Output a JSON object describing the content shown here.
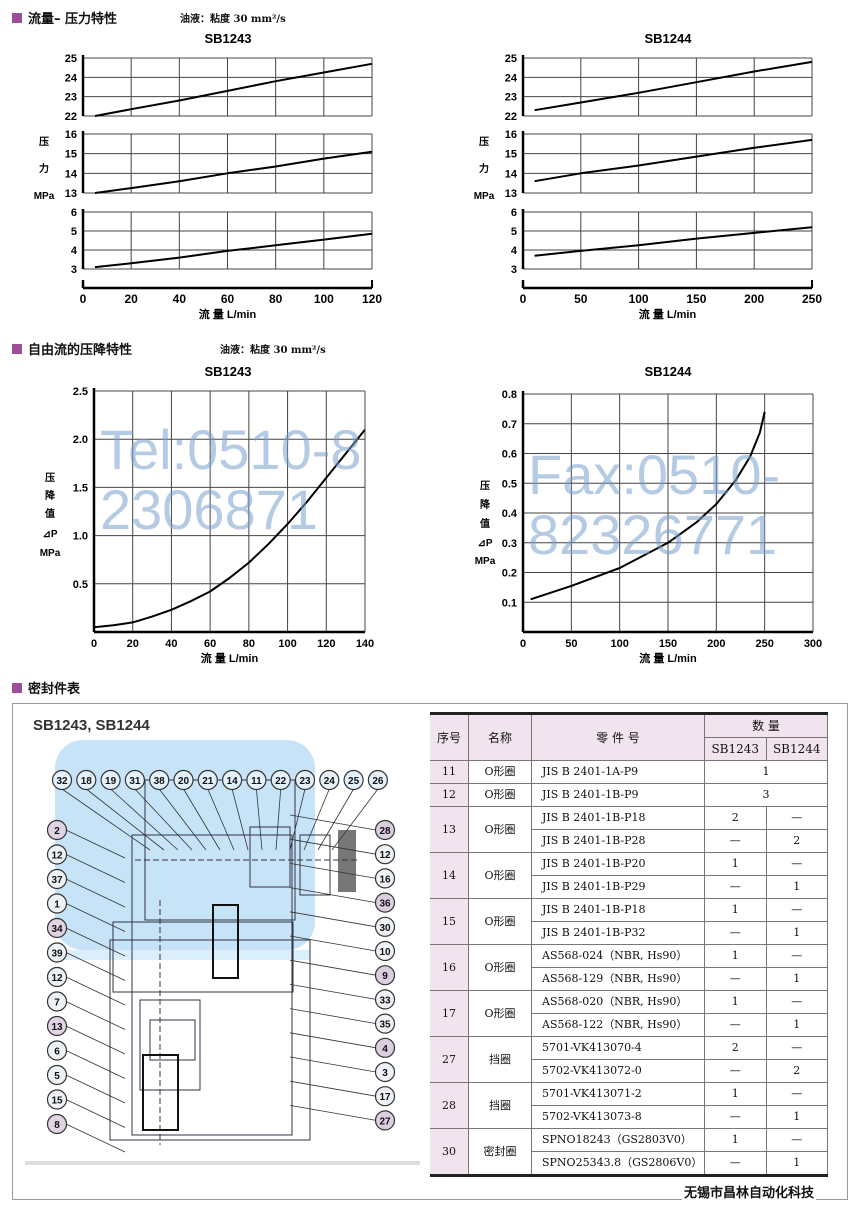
{
  "sections": {
    "flow_pressure": {
      "title": "流量– 压力特性",
      "oil_note": "油液：粘度 30 mm²/s"
    },
    "free_flow": {
      "title": "自由流的压降特性",
      "oil_note": "油液：粘度 30 mm²/s"
    },
    "seal_table": {
      "title": "密封件表"
    }
  },
  "watermarks": {
    "tel": "Tel:0510-82306871",
    "fax": "Fax:0510-82326771"
  },
  "chart_data": [
    {
      "type": "line",
      "title": "SB1243",
      "xlabel": "流 量 L/min",
      "ylabel_lines": [
        "压",
        "力",
        "MPa"
      ],
      "xlim": [
        0,
        120
      ],
      "xticks": [
        0,
        20,
        40,
        60,
        80,
        100,
        120
      ],
      "grid": true,
      "panels": [
        {
          "ylim": [
            22,
            25
          ],
          "yticks": [
            22,
            23,
            24,
            25
          ],
          "x": [
            5,
            20,
            40,
            60,
            80,
            100,
            120
          ],
          "y": [
            22.0,
            22.35,
            22.8,
            23.3,
            23.8,
            24.25,
            24.7
          ]
        },
        {
          "ylim": [
            13,
            16
          ],
          "yticks": [
            13,
            14,
            15,
            16
          ],
          "x": [
            5,
            20,
            40,
            60,
            80,
            100,
            120
          ],
          "y": [
            13.0,
            13.25,
            13.6,
            14.0,
            14.35,
            14.75,
            15.1
          ]
        },
        {
          "ylim": [
            3,
            6
          ],
          "yticks": [
            3,
            4,
            5,
            6
          ],
          "x": [
            5,
            20,
            40,
            60,
            80,
            100,
            120
          ],
          "y": [
            3.1,
            3.3,
            3.6,
            3.95,
            4.25,
            4.55,
            4.85
          ]
        }
      ]
    },
    {
      "type": "line",
      "title": "SB1244",
      "xlabel": "流 量 L/min",
      "ylabel_lines": [
        "压",
        "力",
        "MPa"
      ],
      "xlim": [
        0,
        250
      ],
      "xticks": [
        0,
        50,
        100,
        150,
        200,
        250
      ],
      "grid": true,
      "panels": [
        {
          "ylim": [
            22,
            25
          ],
          "yticks": [
            22,
            23,
            24,
            25
          ],
          "x": [
            10,
            50,
            100,
            150,
            200,
            250
          ],
          "y": [
            22.3,
            22.7,
            23.2,
            23.75,
            24.3,
            24.8
          ]
        },
        {
          "ylim": [
            13,
            16
          ],
          "yticks": [
            13,
            14,
            15,
            16
          ],
          "x": [
            10,
            50,
            100,
            150,
            200,
            250
          ],
          "y": [
            13.6,
            14.0,
            14.4,
            14.85,
            15.3,
            15.7
          ]
        },
        {
          "ylim": [
            3,
            6
          ],
          "yticks": [
            3,
            4,
            5,
            6
          ],
          "x": [
            10,
            50,
            100,
            150,
            200,
            250
          ],
          "y": [
            3.7,
            3.95,
            4.25,
            4.6,
            4.9,
            5.2
          ]
        }
      ]
    },
    {
      "type": "line",
      "title": "SB1243",
      "xlabel": "流 量 L/min",
      "ylabel_lines": [
        "压",
        "降",
        "值",
        "⊿P",
        "MPa"
      ],
      "xlim": [
        0,
        140
      ],
      "ylim": [
        0,
        2.5
      ],
      "xticks": [
        0,
        20,
        40,
        60,
        80,
        100,
        120,
        140
      ],
      "yticks": [
        0.5,
        1.0,
        1.5,
        2.0,
        2.5
      ],
      "ytick_labels": [
        "0.5",
        "1.0",
        "1.5",
        "2.0",
        "2.5"
      ],
      "grid": true,
      "x": [
        0,
        10,
        20,
        30,
        40,
        50,
        60,
        70,
        80,
        90,
        100,
        110,
        120,
        130,
        140
      ],
      "y": [
        0.05,
        0.07,
        0.1,
        0.16,
        0.23,
        0.32,
        0.42,
        0.56,
        0.72,
        0.91,
        1.12,
        1.35,
        1.6,
        1.85,
        2.1
      ]
    },
    {
      "type": "line",
      "title": "SB1244",
      "xlabel": "流 量 L/min",
      "ylabel_lines": [
        "压",
        "降",
        "值",
        "⊿P",
        "MPa"
      ],
      "xlim": [
        0,
        300
      ],
      "ylim": [
        0,
        0.8
      ],
      "xticks": [
        0,
        50,
        100,
        150,
        200,
        250,
        300
      ],
      "yticks": [
        0.1,
        0.2,
        0.3,
        0.4,
        0.5,
        0.6,
        0.7,
        0.8
      ],
      "ytick_labels": [
        "0.1",
        "0.2",
        "0.3",
        "0.4",
        "0.5",
        "0.6",
        "0.7",
        "0.8"
      ],
      "grid": true,
      "x": [
        8,
        50,
        100,
        150,
        180,
        200,
        220,
        235,
        245,
        250
      ],
      "y": [
        0.11,
        0.155,
        0.215,
        0.3,
        0.37,
        0.43,
        0.51,
        0.59,
        0.67,
        0.74
      ]
    }
  ],
  "diagram": {
    "title": "SB1243, SB1244",
    "top_callouts": [
      "32",
      "18",
      "19",
      "31",
      "38",
      "20",
      "21",
      "14",
      "11",
      "22",
      "23",
      "24",
      "25",
      "26"
    ],
    "left_callouts": [
      "2",
      "12",
      "37",
      "1",
      "34",
      "39",
      "12",
      "7",
      "13",
      "6",
      "5",
      "15",
      "8"
    ],
    "right_callouts": [
      "28",
      "12",
      "16",
      "36",
      "30",
      "10",
      "9",
      "33",
      "35",
      "4",
      "3",
      "17",
      "27"
    ]
  },
  "seal_table": {
    "headers": {
      "no": "序号",
      "name": "名称",
      "part": "零 件 号",
      "qty": "数 量",
      "sb1243": "SB1243",
      "sb1244": "SB1244"
    },
    "groups": [
      {
        "no": "11",
        "name": "O形圈",
        "rows": [
          {
            "part": "JIS B 2401-1A-P9",
            "merged": "1"
          }
        ]
      },
      {
        "no": "12",
        "name": "O形圈",
        "rows": [
          {
            "part": "JIS B 2401-1B-P9",
            "merged": "3"
          }
        ]
      },
      {
        "no": "13",
        "name": "O形圈",
        "rows": [
          {
            "part": "JIS B 2401-1B-P18",
            "sb1243": "2",
            "sb1244": "—"
          },
          {
            "part": "JIS B 2401-1B-P28",
            "sb1243": "—",
            "sb1244": "2"
          }
        ]
      },
      {
        "no": "14",
        "name": "O形圈",
        "rows": [
          {
            "part": "JIS B 2401-1B-P20",
            "sb1243": "1",
            "sb1244": "—"
          },
          {
            "part": "JIS B 2401-1B-P29",
            "sb1243": "—",
            "sb1244": "1"
          }
        ]
      },
      {
        "no": "15",
        "name": "O形圈",
        "rows": [
          {
            "part": "JIS B 2401-1B-P18",
            "sb1243": "1",
            "sb1244": "—"
          },
          {
            "part": "JIS B 2401-1B-P32",
            "sb1243": "—",
            "sb1244": "1"
          }
        ]
      },
      {
        "no": "16",
        "name": "O形圈",
        "rows": [
          {
            "part": "AS568-024（NBR, Hs90）",
            "sb1243": "1",
            "sb1244": "—"
          },
          {
            "part": "AS568-129（NBR, Hs90）",
            "sb1243": "—",
            "sb1244": "1"
          }
        ]
      },
      {
        "no": "17",
        "name": "O形圈",
        "rows": [
          {
            "part": "AS568-020（NBR, Hs90）",
            "sb1243": "1",
            "sb1244": "—"
          },
          {
            "part": "AS568-122（NBR, Hs90）",
            "sb1243": "—",
            "sb1244": "1"
          }
        ]
      },
      {
        "no": "27",
        "name": "挡圈",
        "rows": [
          {
            "part": "5701-VK413070-4",
            "sb1243": "2",
            "sb1244": "—"
          },
          {
            "part": "5702-VK413072-0",
            "sb1243": "—",
            "sb1244": "2"
          }
        ]
      },
      {
        "no": "28",
        "name": "挡圈",
        "rows": [
          {
            "part": "5701-VK413071-2",
            "sb1243": "1",
            "sb1244": "—"
          },
          {
            "part": "5702-VK413073-8",
            "sb1243": "—",
            "sb1244": "1"
          }
        ]
      },
      {
        "no": "30",
        "name": "密封圈",
        "rows": [
          {
            "part": "SPNO18243（GS2803V0）",
            "sb1243": "1",
            "sb1244": "—"
          },
          {
            "part": "SPNO25343.8（GS2806V0）",
            "sb1243": "—",
            "sb1244": "1"
          }
        ]
      }
    ]
  },
  "footer": {
    "company": "无锡市昌林自动化科技"
  },
  "colors": {
    "accent": "#9b4f96",
    "header_bg": "#f1e4ef",
    "diagram_blue": "#bfe0f7",
    "watermark": "#78a0cd"
  }
}
